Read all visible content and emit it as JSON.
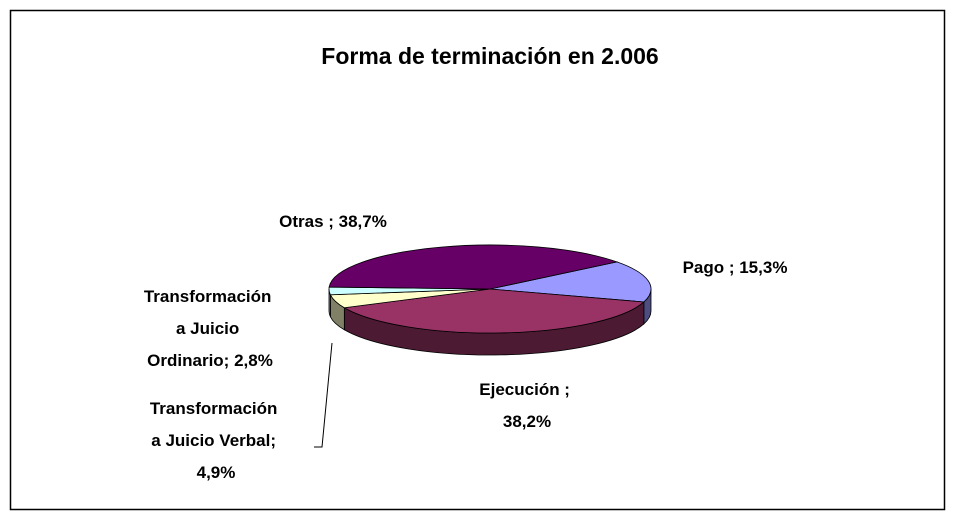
{
  "chart_data": {
    "type": "pie3d",
    "title": "Forma de terminación en 2.006",
    "labels": [
      "Pago ; 15,3%",
      "Ejecución ; 38,2%",
      "Transformación a Juicio Verbal; 4,9%",
      "Transformación a Juicio Ordinario; 2,8%",
      "Otras ; 38,7%"
    ],
    "values": [
      15.3,
      38.2,
      4.9,
      2.8,
      38.7
    ],
    "colors": [
      "#9999ff",
      "#993366",
      "#ffffcc",
      "#ccffff",
      "#660066"
    ]
  }
}
